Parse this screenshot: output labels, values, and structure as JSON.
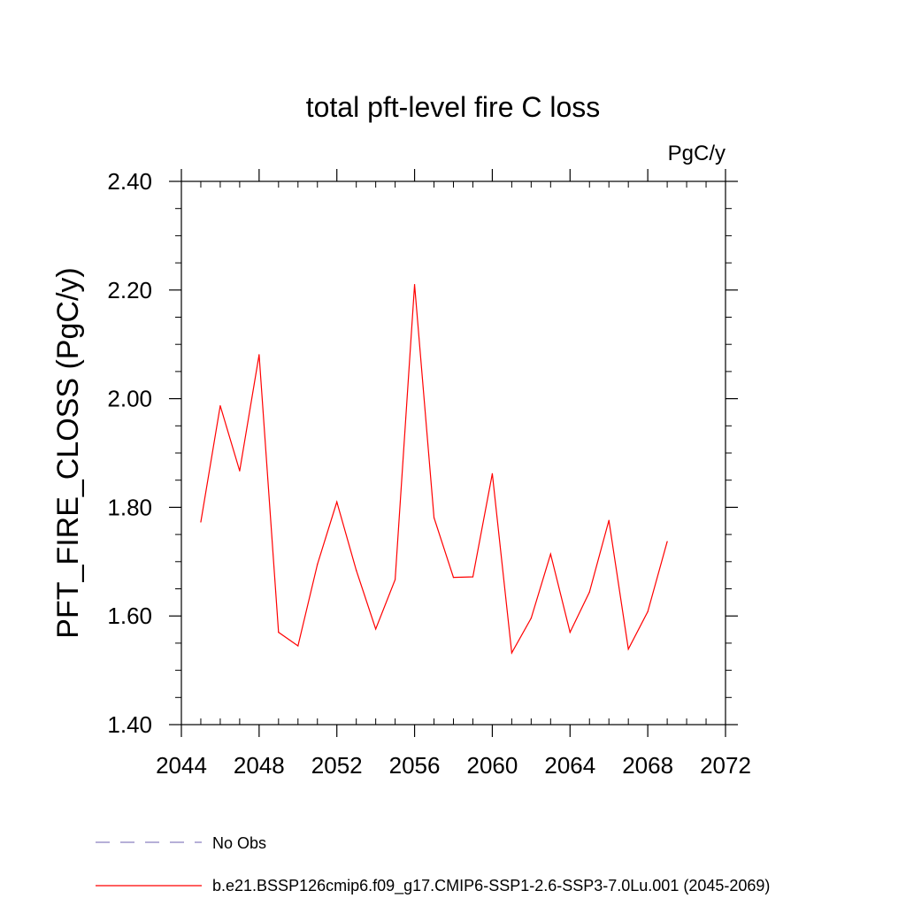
{
  "chart_data": {
    "type": "line",
    "title": "total pft-level fire C loss",
    "units_label": "PgC/y",
    "xlabel": "",
    "ylabel": "PFT_FIRE_CLOSS  (PgC/y)",
    "xlim": [
      2044,
      2072
    ],
    "ylim": [
      1.4,
      2.4
    ],
    "x_ticks": [
      2044,
      2048,
      2052,
      2056,
      2060,
      2064,
      2068,
      2072
    ],
    "y_ticks": [
      "1.40",
      "1.60",
      "1.80",
      "2.00",
      "2.20",
      "2.40"
    ],
    "grid": false,
    "series": [
      {
        "name": "b.e21.BSSP126cmip6.f09_g17.CMIP6-SSP1-2.6-SSP3-7.0Lu.001 (2045-2069)",
        "color": "#ff0000",
        "x": [
          2045,
          2046,
          2047,
          2048,
          2049,
          2050,
          2051,
          2052,
          2053,
          2054,
          2055,
          2056,
          2057,
          2058,
          2059,
          2060,
          2061,
          2062,
          2063,
          2064,
          2065,
          2066,
          2067,
          2068,
          2069
        ],
        "y": [
          1.773,
          1.987,
          1.867,
          2.081,
          1.57,
          1.545,
          1.695,
          1.81,
          1.684,
          1.576,
          1.667,
          2.21,
          1.781,
          1.671,
          1.672,
          1.862,
          1.532,
          1.596,
          1.714,
          1.57,
          1.644,
          1.776,
          1.539,
          1.608,
          1.737
        ]
      }
    ],
    "legend": {
      "placement": "bottom",
      "entries": [
        {
          "label": "No Obs",
          "style": "dashed",
          "color": "#8a7fc0"
        },
        {
          "label": "b.e21.BSSP126cmip6.f09_g17.CMIP6-SSP1-2.6-SSP3-7.0Lu.001 (2045-2069)",
          "style": "solid",
          "color": "#ff0000"
        }
      ]
    }
  }
}
